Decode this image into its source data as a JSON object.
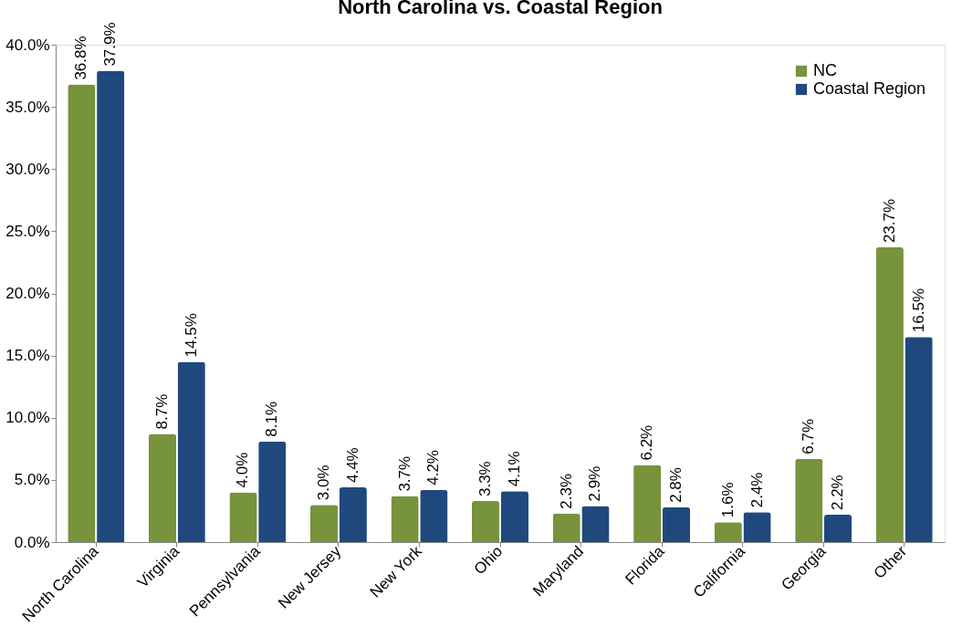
{
  "chart_data": {
    "type": "bar",
    "title": "North Carolina vs. Coastal Region",
    "categories": [
      "North Carolina",
      "Virginia",
      "Pennsylvania",
      "New Jersey",
      "New York",
      "Ohio",
      "Maryland",
      "Florida",
      "California",
      "Georgia",
      "Other"
    ],
    "series": [
      {
        "name": "NC",
        "color": "#77933c",
        "values": [
          36.8,
          8.7,
          4.0,
          3.0,
          3.7,
          3.3,
          2.3,
          6.2,
          1.6,
          6.7,
          23.7
        ],
        "value_labels": [
          "36.8%",
          "8.7%",
          "4.0%",
          "3.0%",
          "3.7%",
          "3.3%",
          "2.3%",
          "6.2%",
          "1.6%",
          "6.7%",
          "23.7%"
        ]
      },
      {
        "name": "Coastal Region",
        "color": "#1f497d",
        "values": [
          37.9,
          14.5,
          8.1,
          4.4,
          4.2,
          4.1,
          2.9,
          2.8,
          2.4,
          2.2,
          16.5
        ],
        "value_labels": [
          "37.9%",
          "14.5%",
          "8.1%",
          "4.4%",
          "4.2%",
          "4.1%",
          "2.9%",
          "2.8%",
          "2.4%",
          "2.2%",
          "16.5%"
        ]
      }
    ],
    "ylim": [
      0,
      40
    ],
    "yticks": [
      {
        "value": 0,
        "label": "0.0%"
      },
      {
        "value": 5,
        "label": "5.0%"
      },
      {
        "value": 10,
        "label": "10.0%"
      },
      {
        "value": 15,
        "label": "15.0%"
      },
      {
        "value": 20,
        "label": "20.0%"
      },
      {
        "value": 25,
        "label": "25.0%"
      },
      {
        "value": 30,
        "label": "30.0%"
      },
      {
        "value": 35,
        "label": "35.0%"
      },
      {
        "value": 40,
        "label": "40.0%"
      }
    ],
    "grid": false,
    "legend": "top right"
  }
}
